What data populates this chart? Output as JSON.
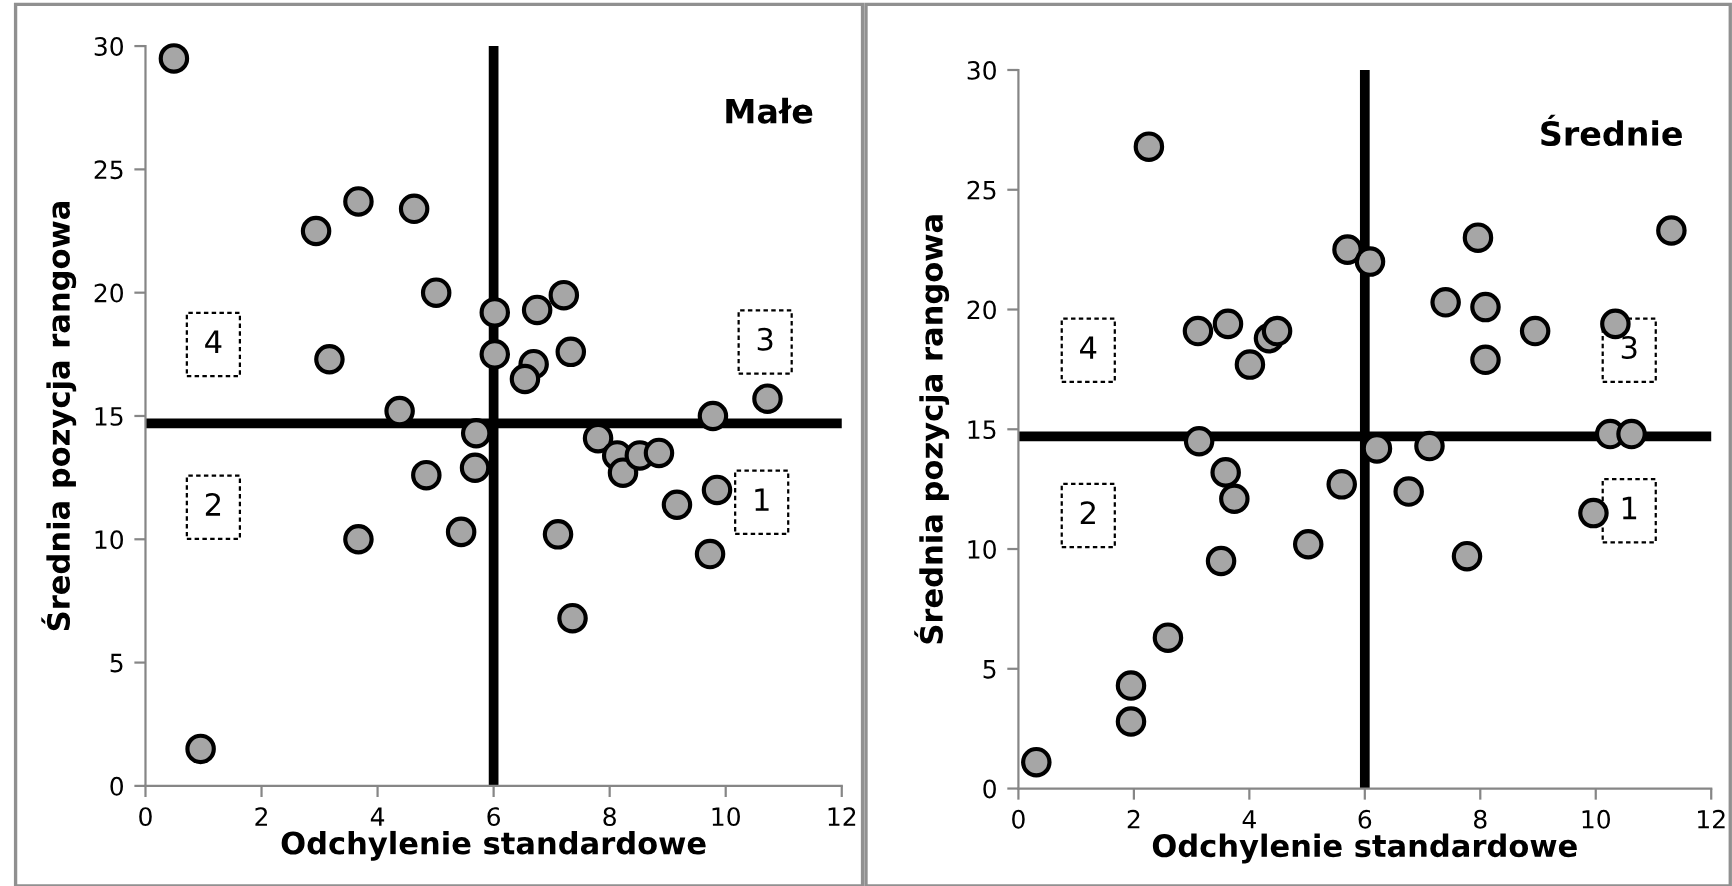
{
  "chart_data": [
    {
      "type": "scatter",
      "title": "Małe",
      "xlabel": "Odchylenie standardowe",
      "ylabel": "Średnia pozycja rangowa",
      "xlim": [
        0,
        12
      ],
      "xticks": [
        0,
        2,
        4,
        6,
        8,
        10,
        12
      ],
      "ylim": [
        0,
        30
      ],
      "yticks": [
        0,
        5,
        10,
        15,
        20,
        25,
        30
      ],
      "grid": false,
      "legend": false,
      "marker": "circle",
      "series": [
        {
          "color": "#a6a6a6",
          "x": [
            0.49,
            2.94,
            3.67,
            4.63,
            5.01,
            3.17,
            4.38,
            6.02,
            6.02,
            6.75,
            7.21,
            6.69,
            6.54,
            7.33,
            9.78,
            10.72,
            5.7,
            4.84,
            5.68,
            3.67,
            5.44,
            0.95,
            7.8,
            8.13,
            8.23,
            8.52,
            8.85,
            9.85,
            9.16,
            9.73,
            7.11,
            7.36
          ],
          "values": [
            29.5,
            22.5,
            23.7,
            23.4,
            20.0,
            17.3,
            15.2,
            19.2,
            17.5,
            19.3,
            19.9,
            17.1,
            16.5,
            17.6,
            15.0,
            15.7,
            14.3,
            12.6,
            12.9,
            10.0,
            10.3,
            1.5,
            14.1,
            13.4,
            12.7,
            13.4,
            13.5,
            12.0,
            11.4,
            9.4,
            10.2,
            6.8
          ]
        }
      ],
      "ref_lines": [
        {
          "axis": "y",
          "value": 14.7,
          "color": "#000000"
        },
        {
          "axis": "x",
          "value": 6,
          "color": "#000000"
        }
      ],
      "annotations": [
        {
          "text": "4",
          "x": 1.17,
          "y": 17.9
        },
        {
          "text": "3",
          "x": 10.68,
          "y": 18.0
        },
        {
          "text": "2",
          "x": 1.17,
          "y": 11.3
        },
        {
          "text": "1",
          "x": 10.62,
          "y": 11.5
        }
      ]
    },
    {
      "type": "scatter",
      "title": "Średnie",
      "xlabel": "Odchylenie standardowe",
      "ylabel": "Średnia pozycja rangowa",
      "xlim": [
        0,
        12
      ],
      "xticks": [
        0,
        2,
        4,
        6,
        8,
        10,
        12
      ],
      "ylim": [
        0,
        30
      ],
      "yticks": [
        0,
        5,
        10,
        15,
        20,
        25,
        30
      ],
      "grid": false,
      "legend": false,
      "marker": "circle",
      "series": [
        {
          "color": "#a6a6a6",
          "x": [
            2.26,
            3.11,
            3.63,
            4.01,
            4.34,
            4.48,
            5.7,
            6.09,
            7.4,
            7.96,
            8.09,
            8.09,
            8.95,
            10.34,
            11.31,
            3.13,
            3.59,
            3.74,
            3.51,
            5.02,
            5.6,
            6.21,
            6.76,
            7.12,
            7.77,
            10.25,
            10.62,
            9.96,
            2.59,
            1.95,
            1.95,
            0.31
          ],
          "values": [
            26.8,
            19.1,
            19.4,
            17.7,
            18.8,
            19.1,
            22.5,
            22.0,
            20.3,
            23.0,
            20.1,
            17.9,
            19.1,
            19.4,
            23.3,
            14.5,
            13.2,
            12.1,
            9.5,
            10.2,
            12.7,
            14.2,
            12.4,
            14.3,
            9.7,
            14.8,
            14.8,
            11.5,
            6.3,
            4.3,
            2.8,
            1.1
          ]
        }
      ],
      "ref_lines": [
        {
          "axis": "y",
          "value": 14.7,
          "color": "#000000"
        },
        {
          "axis": "x",
          "value": 6,
          "color": "#000000"
        }
      ],
      "annotations": [
        {
          "text": "4",
          "x": 1.21,
          "y": 18.3
        },
        {
          "text": "3",
          "x": 10.58,
          "y": 18.3
        },
        {
          "text": "2",
          "x": 1.21,
          "y": 11.4
        },
        {
          "text": "1",
          "x": 10.58,
          "y": 11.6
        }
      ]
    }
  ]
}
